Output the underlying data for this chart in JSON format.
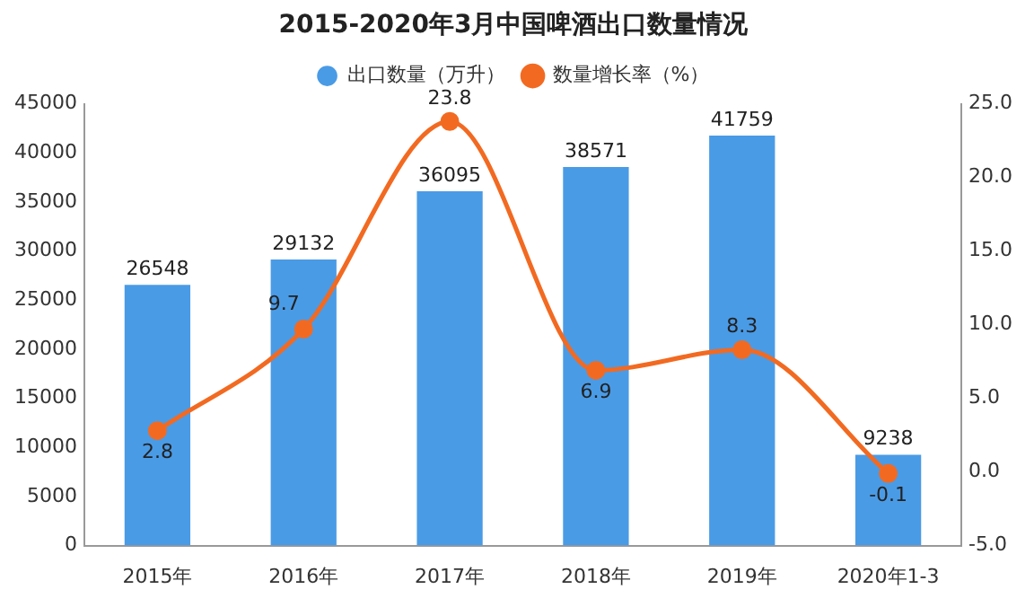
{
  "chart_data": {
    "type": "bar",
    "title": "2015-2020年3月中国啤酒出口数量情况",
    "categories": [
      "2015年",
      "2016年",
      "2017年",
      "2018年",
      "2019年",
      "2020年1-3"
    ],
    "series": [
      {
        "name": "出口数量（万升）",
        "color": "#4a9be6",
        "values": [
          26548,
          29132,
          36095,
          38571,
          41759,
          9238
        ]
      },
      {
        "name": "数量增长率（%）",
        "type": "line",
        "axis": "y2",
        "color": "#f26a21",
        "values": [
          2.8,
          9.7,
          23.8,
          6.9,
          8.3,
          -0.1
        ]
      }
    ],
    "ylim": [
      0,
      45000
    ],
    "yticks": [
      0,
      5000,
      10000,
      15000,
      20000,
      25000,
      30000,
      35000,
      40000,
      45000
    ],
    "y2lim": [
      -5,
      25
    ],
    "y2ticks": [
      {
        "value": -5,
        "label": "-5.0"
      },
      {
        "value": 0,
        "label": "0.0"
      },
      {
        "value": 5,
        "label": "5.0"
      },
      {
        "value": 10,
        "label": "10.0"
      },
      {
        "value": 15,
        "label": "15.0"
      },
      {
        "value": 20,
        "label": "20.0"
      },
      {
        "value": 25,
        "label": "25.0"
      }
    ],
    "data_labels": true,
    "legend": "top",
    "grid": false,
    "marker": "circle"
  }
}
